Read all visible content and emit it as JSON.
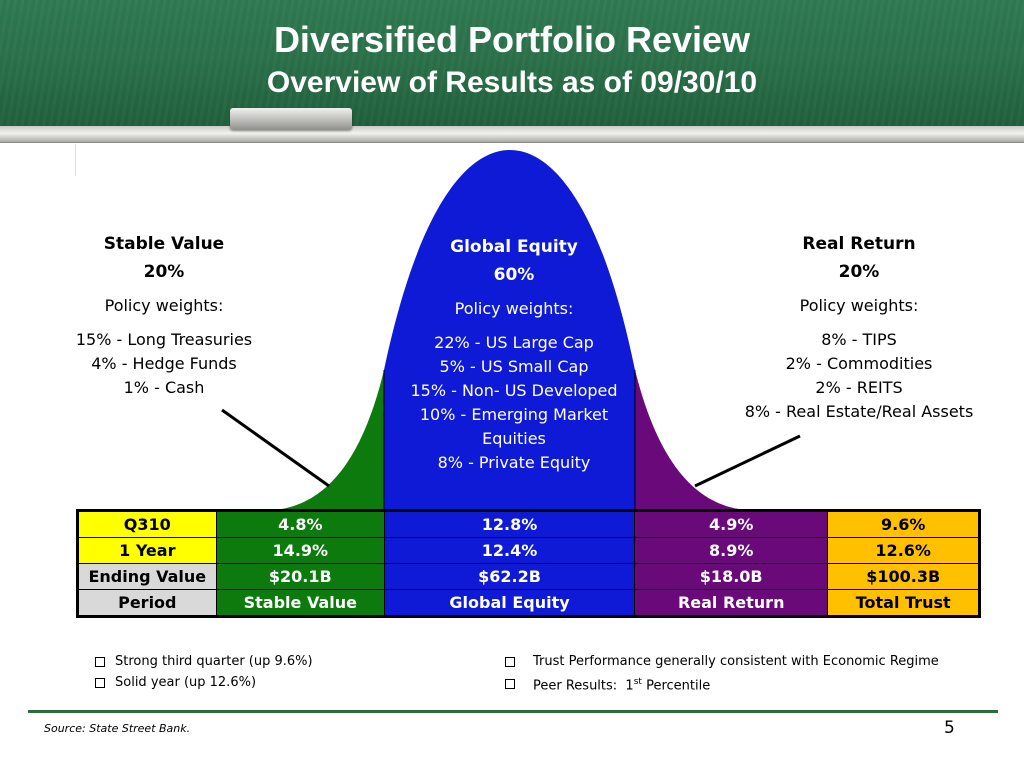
{
  "header": {
    "title": "Diversified Portfolio Review",
    "subtitle": "Overview of Results as of 09/30/10"
  },
  "segments": {
    "stable_value": {
      "name": "Stable Value",
      "weight": "20%",
      "policy_label": "Policy weights:",
      "items": [
        "15% - Long Treasuries",
        "4% - Hedge Funds",
        "1% - Cash"
      ],
      "color": "#0d7a0d"
    },
    "global_equity": {
      "name": "Global Equity",
      "weight": "60%",
      "policy_label": "Policy weights:",
      "items": [
        "22% - US Large Cap",
        "5% - US Small Cap",
        "15% - Non- US Developed",
        "10% - Emerging Market",
        "Equities",
        "8% - Private Equity"
      ],
      "color": "#0f1ad6"
    },
    "real_return": {
      "name": "Real Return",
      "weight": "20%",
      "policy_label": "Policy weights:",
      "items": [
        "8% - TIPS",
        "2% - Commodities",
        "2% - REITS",
        "8% - Real Estate/Real Assets"
      ],
      "color": "#6a0a7a"
    }
  },
  "table": {
    "rows": [
      {
        "label": "Q310",
        "values": [
          "4.8%",
          "12.8%",
          "4.9%",
          "9.6%"
        ]
      },
      {
        "label": "1 Year",
        "values": [
          "14.9%",
          "12.4%",
          "8.9%",
          "12.6%"
        ]
      },
      {
        "label": "Ending Value",
        "values": [
          "$20.1B",
          "$62.2B",
          "$18.0B",
          "$100.3B"
        ]
      },
      {
        "label": "Period",
        "values": [
          "Stable Value",
          "Global Equity",
          "Real Return",
          "Total Trust"
        ]
      }
    ],
    "total_color": "#ffc000"
  },
  "notes": {
    "left": [
      "Strong third quarter (up 9.6%)",
      "Solid year (up 12.6%)"
    ],
    "right_1": "Trust Performance generally consistent with Economic Regime",
    "right_2_prefix": "Peer Results:  1",
    "right_2_sup": "st",
    "right_2_suffix": " Percentile"
  },
  "footer": {
    "source": "Source: State Street Bank.",
    "page_number": "5"
  }
}
